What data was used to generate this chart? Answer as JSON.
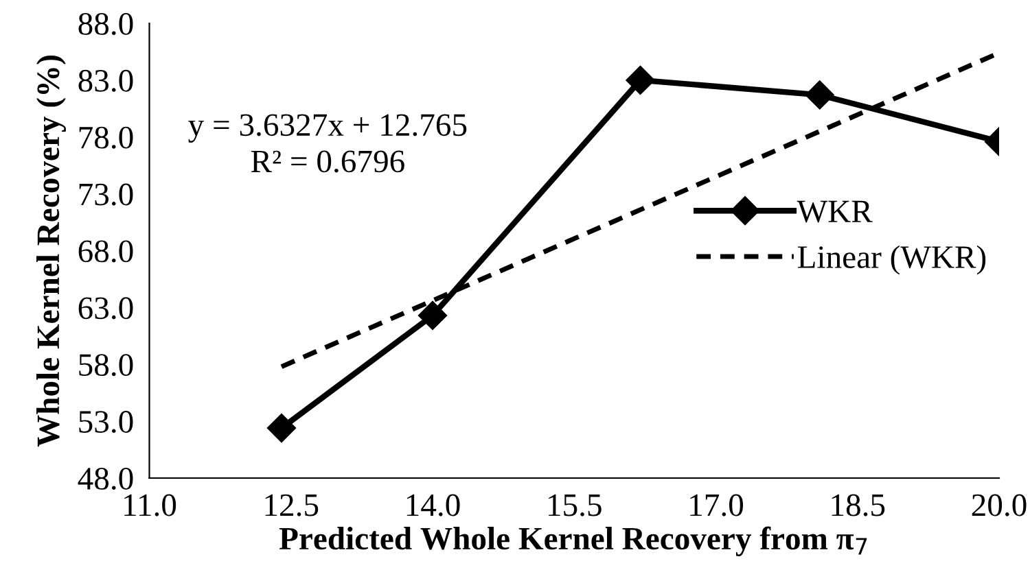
{
  "chart_data": {
    "type": "line",
    "xlabel": "Predicted Whole Kernel Recovery from π$_{7}$",
    "ylabel": "Whole Kernel Recovery (%)",
    "xlim": [
      11.0,
      20.0
    ],
    "xticks": [
      {
        "value": 11,
        "label": "11.0"
      },
      {
        "value": 12.5,
        "label": "12.5"
      },
      {
        "value": 14,
        "label": "14.0"
      },
      {
        "value": 15.5,
        "label": "15.5"
      },
      {
        "value": 17,
        "label": "17.0"
      },
      {
        "value": 18.5,
        "label": "18.5"
      },
      {
        "value": 20,
        "label": "20.0"
      }
    ],
    "ylim": [
      48.0,
      88.0
    ],
    "yticks": [
      {
        "value": 48,
        "label": "48.0"
      },
      {
        "value": 53,
        "label": "53.0"
      },
      {
        "value": 58,
        "label": "58.0"
      },
      {
        "value": 63,
        "label": "63.0"
      },
      {
        "value": 68,
        "label": "68.0"
      },
      {
        "value": 73,
        "label": "73.0"
      },
      {
        "value": 78,
        "label": "78.0"
      },
      {
        "value": 83,
        "label": "83.0"
      },
      {
        "value": 88,
        "label": "88.0"
      }
    ],
    "series": [
      {
        "name": "WKR",
        "color": "#000000",
        "x": [
          12.4,
          14.0,
          16.2,
          18.1,
          20.0
        ],
        "values": [
          52.4,
          62.3,
          83.0,
          81.7,
          77.6
        ],
        "marker": "diamond",
        "line_style": "solid"
      },
      {
        "name": "Linear (WKR)",
        "color": "#000000",
        "x": [
          12.4,
          20.0
        ],
        "values": [
          57.8,
          85.4
        ],
        "marker": "none",
        "line_style": "dashed"
      }
    ],
    "annotations": [
      "y = 3.6327x + 12.765",
      "R² = 0.6796"
    ],
    "grid": false,
    "legend": "right"
  }
}
